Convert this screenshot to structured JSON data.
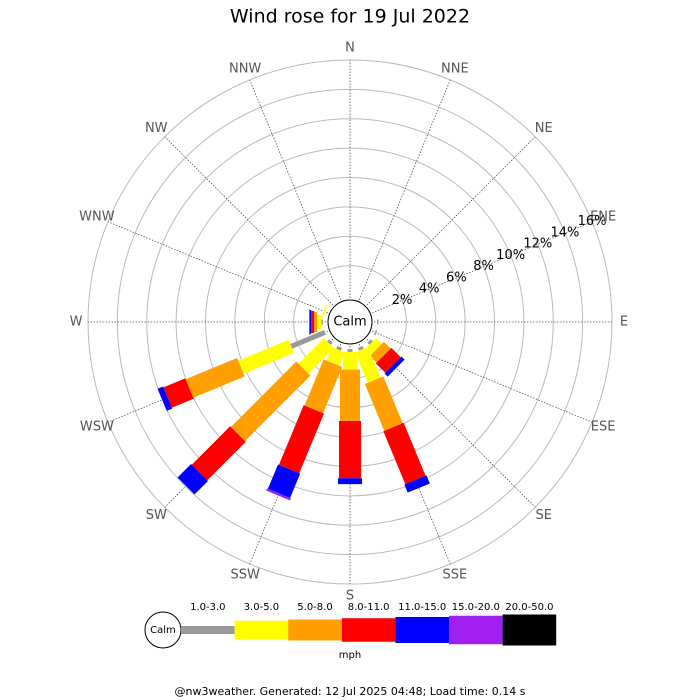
{
  "chart_data": {
    "type": "windrose",
    "title": "Wind rose for 19 Jul 2022",
    "directions": [
      "N",
      "NNE",
      "NE",
      "ENE",
      "E",
      "ESE",
      "SE",
      "SSE",
      "S",
      "SSW",
      "SW",
      "WSW",
      "W",
      "WNW",
      "NW",
      "NNW"
    ],
    "calm_label": "Calm",
    "unit": "mph",
    "rlim": [
      0,
      16
    ],
    "rticks": [
      {
        "value": 2,
        "label": "2%"
      },
      {
        "value": 4,
        "label": "4%"
      },
      {
        "value": 6,
        "label": "6%"
      },
      {
        "value": 8,
        "label": "8%"
      },
      {
        "value": 10,
        "label": "10%"
      },
      {
        "value": 12,
        "label": "12%"
      },
      {
        "value": 14,
        "label": "14%"
      },
      {
        "value": 16,
        "label": "16%"
      }
    ],
    "series": [
      {
        "name": "1.0-3.0",
        "color": "#999999",
        "values": [
          0,
          0,
          0,
          0,
          0.1,
          0.1,
          0.2,
          0.2,
          0.2,
          0.2,
          0.2,
          2.5,
          0.1,
          0,
          0,
          0
        ]
      },
      {
        "name": "3.0-5.0",
        "color": "#ffff00",
        "values": [
          0,
          0,
          0,
          0,
          0,
          0,
          0.55,
          2.25,
          1.2,
          1.0,
          2.45,
          3.7,
          0.3,
          0.1,
          0,
          0
        ]
      },
      {
        "name": "5.0-8.0",
        "color": "#ffa000",
        "values": [
          0,
          0,
          0,
          0,
          0,
          0,
          0.65,
          3.45,
          3.5,
          3.4,
          6.3,
          3.8,
          0.2,
          0,
          0,
          0
        ]
      },
      {
        "name": "8.0-11.0",
        "color": "#ff0000",
        "values": [
          0,
          0,
          0,
          0,
          0,
          0,
          0.9,
          3.9,
          3.9,
          4.4,
          3.7,
          1.6,
          0.2,
          0,
          0,
          0
        ]
      },
      {
        "name": "11.0-15.0",
        "color": "#0000ff",
        "values": [
          0,
          0,
          0,
          0,
          0,
          0,
          0.3,
          0.6,
          0.4,
          1.8,
          1.3,
          0.4,
          0.1,
          0,
          0,
          0
        ]
      },
      {
        "name": "15.0-20.0",
        "color": "#a020f0",
        "values": [
          0,
          0,
          0,
          0,
          0,
          0,
          0,
          0,
          0,
          0.15,
          0,
          0,
          0.05,
          0,
          0,
          0
        ]
      },
      {
        "name": "20.0-50.0",
        "color": "#000000",
        "values": [
          0,
          0,
          0,
          0,
          0,
          0,
          0,
          0,
          0,
          0,
          0,
          0,
          0,
          0,
          0,
          0
        ]
      }
    ],
    "footer": "@nw3weather. Generated: 12 Jul 2025 04:48; Load time: 0.14 s"
  }
}
